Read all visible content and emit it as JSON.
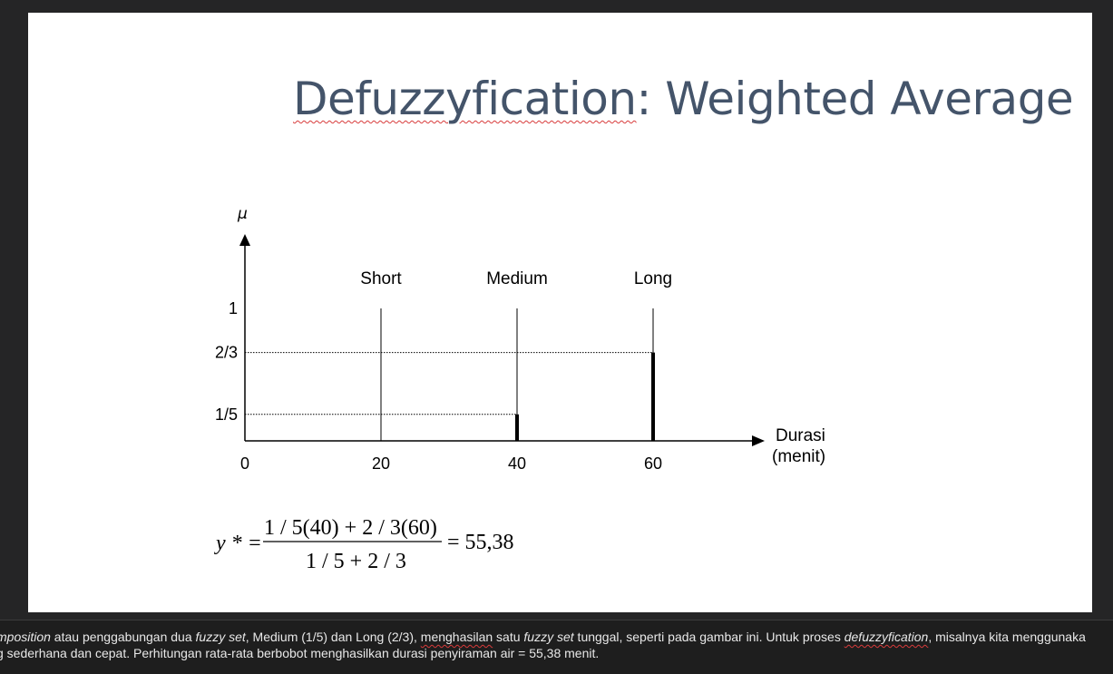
{
  "slide": {
    "title_part1": "Defuzzyfication",
    "title_part2": ": Weighted Average"
  },
  "chart_data": {
    "type": "bar",
    "y_axis_label": "μ",
    "x_axis_label_line1": "Durasi",
    "x_axis_label_line2": "(menit)",
    "x_ticks": [
      "0",
      "20",
      "40",
      "60"
    ],
    "y_ticks": [
      "1/5",
      "2/3",
      "1"
    ],
    "categories": [
      "Short",
      "Medium",
      "Long"
    ],
    "x": [
      20,
      40,
      60
    ],
    "values": [
      0,
      0.2,
      0.6667
    ],
    "xlim": [
      0,
      75
    ],
    "ylim": [
      0,
      1
    ],
    "grid": false
  },
  "formula": {
    "lhs": "y * =",
    "numerator": "1 / 5(40) + 2 / 3(60)",
    "denominator": "1 / 5 + 2 / 3",
    "result": "= 55,38"
  },
  "notes": {
    "line1_a": "mposition",
    "line1_b": " atau penggabungan dua ",
    "line1_c": "fuzzy set",
    "line1_d": ", Medium (1/5) dan Long (2/3), ",
    "line1_e": "menghasilan",
    "line1_f": " satu ",
    "line1_g": "fuzzy set",
    "line1_h": " tunggal, seperti pada gambar ini. Untuk proses ",
    "line1_i": "defuzzyfication",
    "line1_j": ", misalnya kita menggunaka",
    "line2": "g sederhana dan cepat. Perhitungan rata-rata berbobot menghasilkan durasi penyiraman air = 55,38 menit."
  }
}
